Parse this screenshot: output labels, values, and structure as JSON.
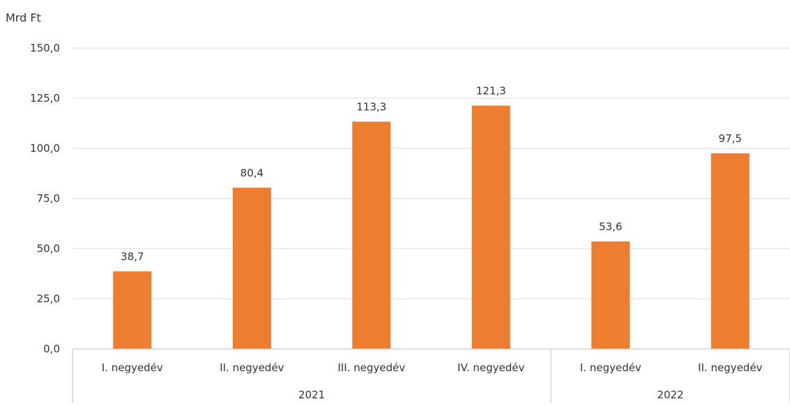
{
  "chart_data": {
    "type": "bar",
    "y_unit_label": "Mrd Ft",
    "ylim": [
      0,
      150
    ],
    "y_ticks": [
      "0,0",
      "25,0",
      "50,0",
      "75,0",
      "100,0",
      "125,0",
      "150,0"
    ],
    "y_tick_values": [
      0,
      25,
      50,
      75,
      100,
      125,
      150
    ],
    "grid": true,
    "legend": "none",
    "categories": [
      "I. negyedév",
      "II. negyedév",
      "III. negyedév",
      "IV. negyedév",
      "I. negyedév",
      "II. negyedév"
    ],
    "groups": [
      {
        "label": "2021",
        "count": 4
      },
      {
        "label": "2022",
        "count": 2
      }
    ],
    "values": [
      38.7,
      80.4,
      113.3,
      121.3,
      53.6,
      97.5
    ],
    "value_labels": [
      "38,7",
      "80,4",
      "113,3",
      "121,3",
      "53,6",
      "97,5"
    ],
    "bar_color": "#ED7D31",
    "grid_color": "#D9D9D9",
    "axis_color": "#BFBFBF"
  }
}
